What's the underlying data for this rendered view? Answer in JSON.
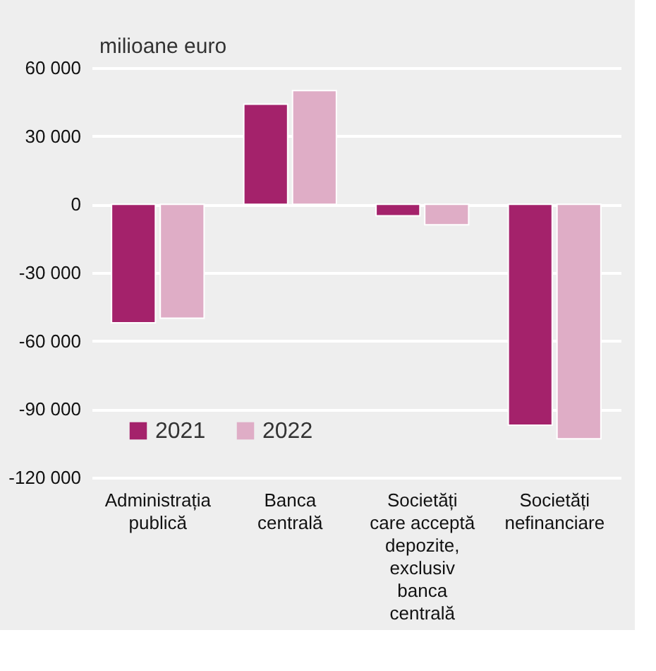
{
  "chart_data": {
    "type": "bar",
    "ylabel": "milioane euro",
    "categories": [
      "Administrația publică",
      "Banca centrală",
      "Societăți care acceptă depozite, exclusiv banca centrală",
      "Societăți nefinanciare"
    ],
    "series": [
      {
        "name": "2021",
        "color": "#a4226b",
        "values": [
          -52000,
          44000,
          -5000,
          -97000
        ]
      },
      {
        "name": "2022",
        "color": "#dfadc6",
        "values": [
          -50000,
          50000,
          -9000,
          -103000
        ]
      }
    ],
    "ylim": [
      -120000,
      60000
    ],
    "yticks": [
      {
        "value": 60000,
        "label": "60 000"
      },
      {
        "value": 30000,
        "label": "30 000"
      },
      0,
      {
        "value": -30000,
        "label": "-30 000"
      },
      {
        "value": -60000,
        "label": "-60 000"
      },
      {
        "value": -90000,
        "label": "-90 000"
      },
      {
        "value": -120000,
        "label": "-120 000"
      }
    ],
    "grid": "y",
    "legend": "bottom left"
  }
}
